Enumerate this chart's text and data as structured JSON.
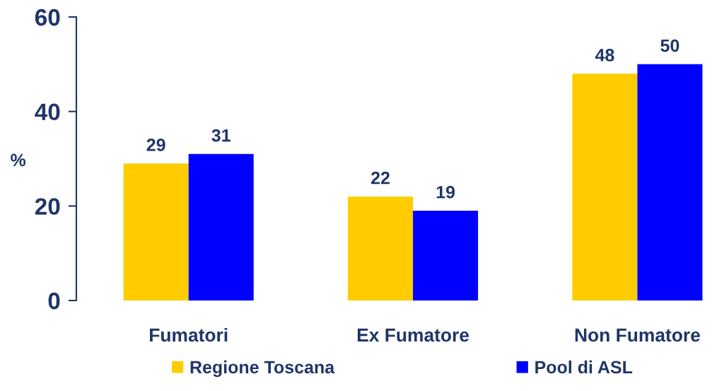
{
  "chart_data": {
    "type": "bar",
    "ylabel": "%",
    "categories": [
      "Fumatori",
      "Ex Fumatore",
      "Non Fumatore"
    ],
    "series": [
      {
        "name": "Regione Toscana",
        "color": "#ffcc00",
        "values": [
          29,
          22,
          48
        ]
      },
      {
        "name": "Pool di ASL",
        "color": "#0000ff",
        "values": [
          31,
          19,
          50
        ]
      }
    ],
    "ylim": [
      0,
      60
    ],
    "yticks": [
      0,
      20,
      40,
      60
    ],
    "data_labels": true,
    "legend": "bottom"
  }
}
